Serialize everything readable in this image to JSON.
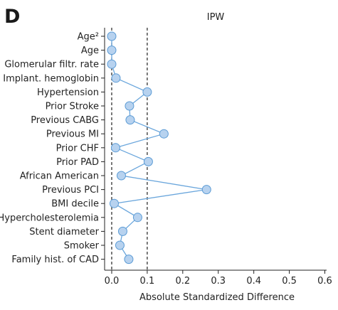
{
  "panel_label": "D",
  "chart_data": {
    "type": "scatter",
    "title": "IPW",
    "xlabel": "Absolute Standardized Difference",
    "ylabel": "",
    "xlim": [
      -0.02,
      0.605
    ],
    "xticks": [
      "0.0",
      "0.1",
      "0.2",
      "0.3",
      "0.4",
      "0.5",
      "0.6"
    ],
    "reference_lines": [
      0.0,
      0.1
    ],
    "categories": [
      "Age²",
      "Age",
      "Glomerular filtr. rate",
      "Implant. hemoglobin",
      "Hypertension",
      "Prior Stroke",
      "Previous CABG",
      "Previous MI",
      "Prior CHF",
      "Prior PAD",
      "African American",
      "Previous PCI",
      "BMI decile",
      "Hypercholesterolemia",
      "Stent diameter",
      "Smoker",
      "Family hist. of CAD"
    ],
    "values": [
      0.0,
      0.0,
      0.0,
      0.012,
      0.1,
      0.05,
      0.052,
      0.147,
      0.011,
      0.103,
      0.027,
      0.267,
      0.007,
      0.073,
      0.031,
      0.023,
      0.048
    ],
    "colors": {
      "marker_fill": "#b7d2ef",
      "marker_stroke": "#5b9bd5",
      "line": "#6aa6dc",
      "axis": "#222222",
      "reference": "#222222"
    },
    "grid": false,
    "legend": "none"
  }
}
